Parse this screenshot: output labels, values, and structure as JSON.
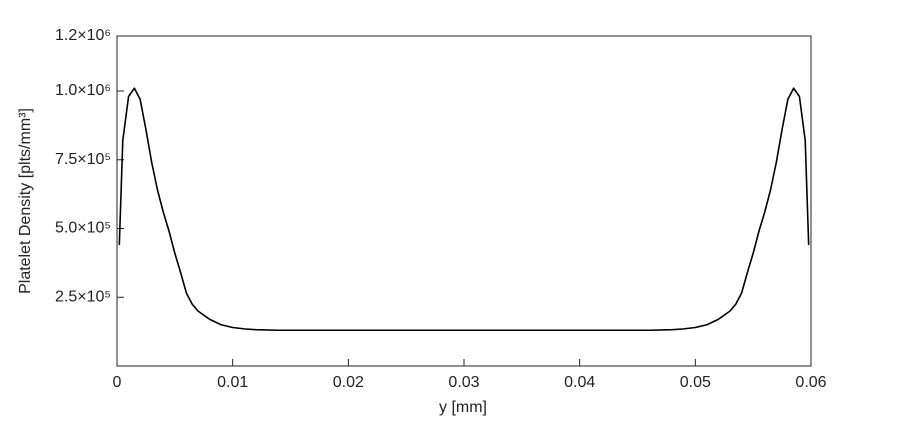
{
  "chart_data": {
    "type": "line",
    "x_label": "y [mm]",
    "y_label": "Platelet Density [plts/mm³]",
    "xlim": [
      0,
      0.06
    ],
    "xticks": [
      0,
      0.01,
      0.02,
      0.03,
      0.04,
      0.05,
      0.06
    ],
    "ylim": [
      0,
      1200000
    ],
    "yticks": [
      {
        "value": 250000,
        "label": "2.5×10⁵"
      },
      {
        "value": 500000,
        "label": "5.0×10⁵"
      },
      {
        "value": 750000,
        "label": "7.5×10⁵"
      },
      {
        "value": 1000000,
        "label": "1.0×10⁶"
      },
      {
        "value": 1200000,
        "label": "1.2×10⁶"
      }
    ],
    "grid": false,
    "x": [
      0.0002,
      0.0005,
      0.001,
      0.0015,
      0.002,
      0.0025,
      0.003,
      0.0035,
      0.004,
      0.0045,
      0.005,
      0.0055,
      0.006,
      0.0065,
      0.007,
      0.008,
      0.009,
      0.01,
      0.011,
      0.012,
      0.014,
      0.03,
      0.046,
      0.048,
      0.049,
      0.05,
      0.051,
      0.052,
      0.053,
      0.0535,
      0.054,
      0.0545,
      0.055,
      0.0555,
      0.056,
      0.0565,
      0.057,
      0.0575,
      0.058,
      0.0585,
      0.059,
      0.0595,
      0.0598
    ],
    "series": [
      {
        "color": "#000000",
        "values": [
          440000,
          820000,
          980000,
          1010000,
          970000,
          860000,
          740000,
          640000,
          560000,
          490000,
          410000,
          340000,
          265000,
          225000,
          200000,
          170000,
          150000,
          140000,
          135000,
          132000,
          130000,
          130000,
          130000,
          132000,
          135000,
          140000,
          150000,
          170000,
          200000,
          225000,
          265000,
          340000,
          410000,
          490000,
          560000,
          640000,
          740000,
          860000,
          970000,
          1010000,
          980000,
          820000,
          440000
        ]
      }
    ]
  }
}
